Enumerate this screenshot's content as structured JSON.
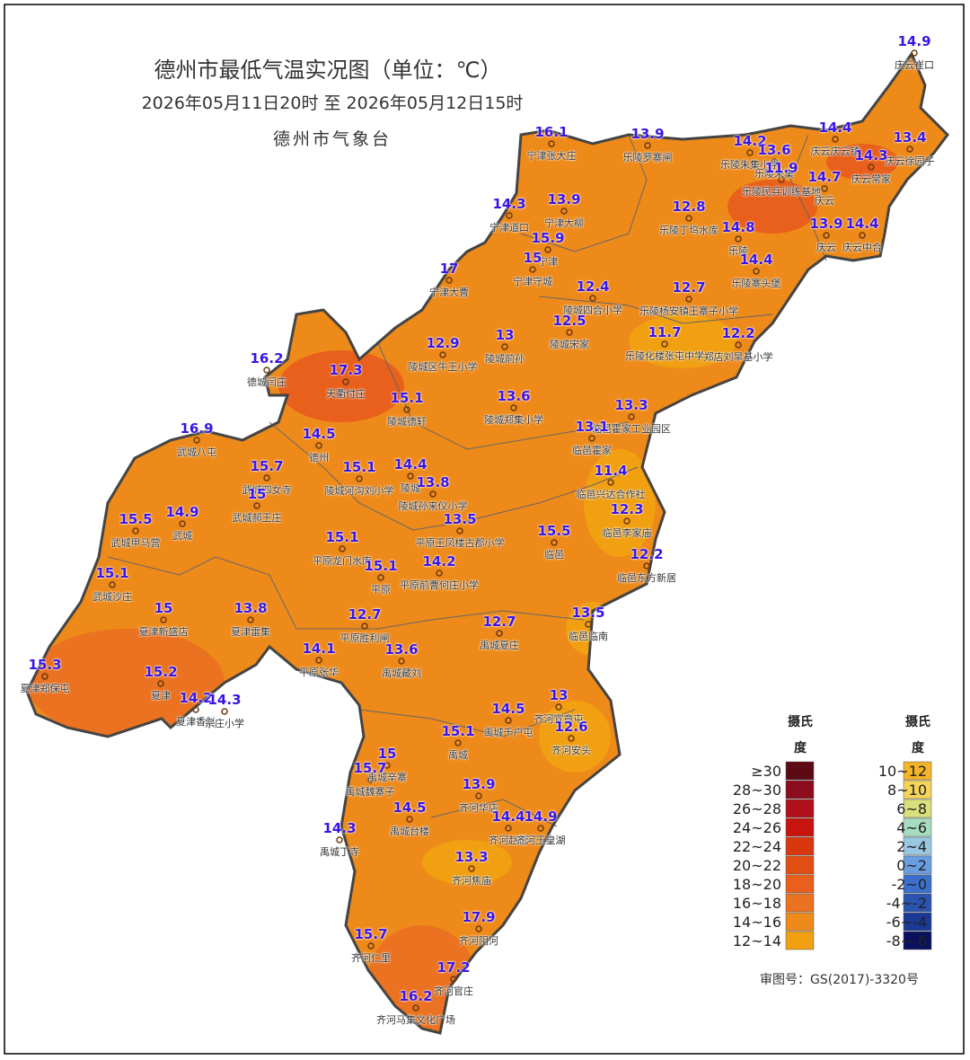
{
  "header": {
    "title": "德州市最低气温实况图（单位：℃）",
    "period": "2026年05月11日20时  至  2026年05月12日15时",
    "agency": "德州市气象台"
  },
  "stations": [
    {
      "value": 14.9,
      "name": "庆云崔口"
    },
    {
      "value": 16.1,
      "name": "宁津张大庄"
    },
    {
      "value": 13.9,
      "name": "乐陵罗寨闸"
    },
    {
      "value": 14.2,
      "name": "乐陵朱集小学"
    },
    {
      "value": 13.6,
      "name": "乐陵朱集"
    },
    {
      "value": 14.4,
      "name": "庆云庆云镇"
    },
    {
      "value": 13.4,
      "name": "庆云徐园子"
    },
    {
      "value": 11.9,
      "name": "乐陵民兵训练基地"
    },
    {
      "value": 14.3,
      "name": "庆云常家"
    },
    {
      "value": 14.7,
      "name": "庆云"
    },
    {
      "value": 14.3,
      "name": "宁津道口"
    },
    {
      "value": 13.9,
      "name": "宁津大柳"
    },
    {
      "value": 15.9,
      "name": "宁津"
    },
    {
      "value": 15,
      "name": "宁津守城"
    },
    {
      "value": 12.8,
      "name": "乐陵丁坞水库"
    },
    {
      "value": 14.8,
      "name": "乐陵"
    },
    {
      "value": 13.9,
      "name": "庆云"
    },
    {
      "value": 14.4,
      "name": "庆云中合"
    },
    {
      "value": 14.4,
      "name": "乐陵寨头堡"
    },
    {
      "value": 17,
      "name": "宁津大曹"
    },
    {
      "value": 12.4,
      "name": "陵城四合小学"
    },
    {
      "value": 12.7,
      "name": "乐陵杨安镇王寨子小学"
    },
    {
      "value": 12.5,
      "name": "陵城宋家"
    },
    {
      "value": 13,
      "name": "陵城前孙"
    },
    {
      "value": 12.9,
      "name": "陵城区牛王小学"
    },
    {
      "value": 11.7,
      "name": "乐陵化楼张屯中学"
    },
    {
      "value": 12.2,
      "name": "郑店刘旱基小学"
    },
    {
      "value": 16.2,
      "name": "德城闫庄"
    },
    {
      "value": 17.3,
      "name": "天衢付庄"
    },
    {
      "value": 15.1,
      "name": "陵城德轩"
    },
    {
      "value": 13.6,
      "name": "陵城郑集小学"
    },
    {
      "value": 13.3,
      "name": "临邑霍家工业园区"
    },
    {
      "value": 13.1,
      "name": "临邑霍家"
    },
    {
      "value": 16.9,
      "name": "武城八屯"
    },
    {
      "value": 14.5,
      "name": "德州"
    },
    {
      "value": 15.7,
      "name": "武城四女寺"
    },
    {
      "value": 15.1,
      "name": "陵城河沟刘小学"
    },
    {
      "value": 14.4,
      "name": "陵城"
    },
    {
      "value": 13.8,
      "name": "陵城孙来仪小学"
    },
    {
      "value": 11.4,
      "name": "临邑兴达合作社"
    },
    {
      "value": 15,
      "name": "武城郝王庄"
    },
    {
      "value": 14.9,
      "name": "武城"
    },
    {
      "value": 15.5,
      "name": "武城甲马营"
    },
    {
      "value": 12.3,
      "name": "临邑李家庙"
    },
    {
      "value": 13.5,
      "name": "平原王凤楼古郡小学"
    },
    {
      "value": 15.5,
      "name": "临邑"
    },
    {
      "value": 15.1,
      "name": "平原龙门水库"
    },
    {
      "value": 12.2,
      "name": "临邑东方新居"
    },
    {
      "value": 14.2,
      "name": "平原前曹何庄小学"
    },
    {
      "value": 15.1,
      "name": "平原"
    },
    {
      "value": 15.1,
      "name": "武城沙庄"
    },
    {
      "value": 15,
      "name": "夏津新盛店"
    },
    {
      "value": 13.8,
      "name": "夏津雷集"
    },
    {
      "value": 13.5,
      "name": "临邑临南"
    },
    {
      "value": 12.7,
      "name": "平原胜利闸"
    },
    {
      "value": 12.7,
      "name": "禹城夏庄"
    },
    {
      "value": 14.1,
      "name": "平原张华"
    },
    {
      "value": 13.6,
      "name": "禹城藏刘"
    },
    {
      "value": 15.3,
      "name": "夏津郑保屯"
    },
    {
      "value": 15.2,
      "name": "夏津"
    },
    {
      "value": 14.2,
      "name": "夏津香赵"
    },
    {
      "value": 14.3,
      "name": "宗庄小学"
    },
    {
      "value": 13,
      "name": "齐河宣章屯"
    },
    {
      "value": 14.5,
      "name": "禹城千户屯"
    },
    {
      "value": 12.6,
      "name": "齐河安头"
    },
    {
      "value": 15.1,
      "name": "禹城"
    },
    {
      "value": 15,
      "name": "禹城辛寨"
    },
    {
      "value": 15.7,
      "name": "禹城魏寨子"
    },
    {
      "value": 13.9,
      "name": "齐河华店"
    },
    {
      "value": 14.5,
      "name": "禹城台楼"
    },
    {
      "value": 14.4,
      "name": "齐河赵官"
    },
    {
      "value": 14.9,
      "name": "齐河玉皇湖"
    },
    {
      "value": 14.3,
      "name": "禹城丁寺"
    },
    {
      "value": 13.3,
      "name": "齐河焦庙"
    },
    {
      "value": 17.9,
      "name": "齐河阴河"
    },
    {
      "value": 15.7,
      "name": "齐河仁里"
    },
    {
      "value": 17.2,
      "name": "齐河官庄"
    },
    {
      "value": 16.2,
      "name": "齐河马集文化广场"
    }
  ],
  "legend": {
    "titles": [
      "摄氏度",
      "摄氏度"
    ],
    "columns": [
      [
        {
          "label": "≥30",
          "color": "#5c0a14"
        },
        {
          "label": "28~30",
          "color": "#8c0d1c"
        },
        {
          "label": "26~28",
          "color": "#b0101a"
        },
        {
          "label": "24~26",
          "color": "#c8140f"
        },
        {
          "label": "22~24",
          "color": "#d9380e"
        },
        {
          "label": "20~22",
          "color": "#e04e12"
        },
        {
          "label": "18~20",
          "color": "#e8601c"
        },
        {
          "label": "16~18",
          "color": "#ea7220"
        },
        {
          "label": "14~16",
          "color": "#ee8a1a"
        },
        {
          "label": "12~14",
          "color": "#f0a010"
        }
      ],
      [
        {
          "label": "10~12",
          "color": "#f5b42a"
        },
        {
          "label": "8~10",
          "color": "#f5d45a"
        },
        {
          "label": "6~8",
          "color": "#d8e07c"
        },
        {
          "label": "4~6",
          "color": "#a8dcc0"
        },
        {
          "label": "2~4",
          "color": "#9ac6e0"
        },
        {
          "label": "0~2",
          "color": "#6a9ee0"
        },
        {
          "label": "-2~0",
          "color": "#3a70cc"
        },
        {
          "label": "-4~-2",
          "color": "#2a54b0"
        },
        {
          "label": "-6~-4",
          "color": "#1a3a96"
        },
        {
          "label": "-8~-6",
          "color": "#0a1260"
        }
      ]
    ]
  },
  "footer": {
    "review_number": "审图号：GS(2017)-3320号"
  }
}
